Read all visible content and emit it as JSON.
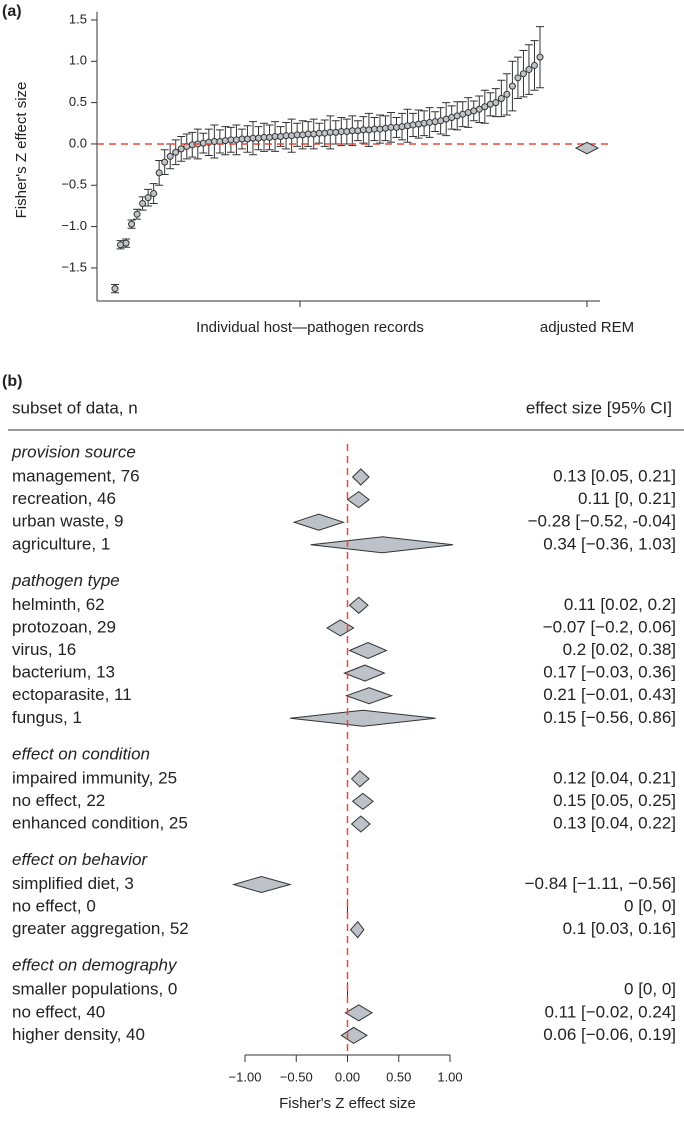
{
  "chart_data": [
    {
      "type": "scatter",
      "panel_label": "(a)",
      "ylabel": "Fisher's Z effect size",
      "xlabel": "Individual host—pathogen records",
      "rem_label": "adjusted REM",
      "ylim": [
        -1.9,
        1.6
      ],
      "yticks": [
        {
          "value": -1.5,
          "label": "−1.5"
        },
        {
          "value": -1,
          "label": "−1.0"
        },
        {
          "value": -0.5,
          "label": "−0.5"
        },
        {
          "value": 0,
          "label": "0.0"
        },
        {
          "value": 0.5,
          "label": "0.5"
        },
        {
          "value": 1,
          "label": "1.0"
        },
        {
          "value": 1.5,
          "label": "1.5"
        }
      ],
      "values": [
        -1.75,
        -1.22,
        -1.2,
        -0.97,
        -0.85,
        -0.72,
        -0.65,
        -0.6,
        -0.35,
        -0.22,
        -0.15,
        -0.1,
        -0.06,
        -0.03,
        -0.01,
        0.0,
        0.01,
        0.02,
        0.03,
        0.03,
        0.04,
        0.05,
        0.05,
        0.06,
        0.06,
        0.07,
        0.07,
        0.08,
        0.08,
        0.09,
        0.09,
        0.1,
        0.1,
        0.11,
        0.11,
        0.12,
        0.12,
        0.13,
        0.13,
        0.14,
        0.14,
        0.15,
        0.15,
        0.16,
        0.16,
        0.17,
        0.17,
        0.18,
        0.18,
        0.19,
        0.2,
        0.2,
        0.21,
        0.22,
        0.23,
        0.24,
        0.25,
        0.26,
        0.27,
        0.28,
        0.3,
        0.32,
        0.34,
        0.36,
        0.38,
        0.4,
        0.42,
        0.45,
        0.48,
        0.5,
        0.55,
        0.6,
        0.7,
        0.8,
        0.85,
        0.9,
        0.95,
        1.05
      ],
      "errors": [
        0.05,
        0.05,
        0.05,
        0.05,
        0.06,
        0.08,
        0.1,
        0.12,
        0.15,
        0.15,
        0.15,
        0.15,
        0.15,
        0.15,
        0.15,
        0.18,
        0.12,
        0.16,
        0.2,
        0.14,
        0.17,
        0.15,
        0.18,
        0.12,
        0.16,
        0.2,
        0.14,
        0.17,
        0.15,
        0.18,
        0.12,
        0.16,
        0.2,
        0.14,
        0.17,
        0.15,
        0.18,
        0.12,
        0.16,
        0.2,
        0.14,
        0.17,
        0.15,
        0.18,
        0.12,
        0.16,
        0.2,
        0.14,
        0.17,
        0.15,
        0.18,
        0.12,
        0.16,
        0.2,
        0.14,
        0.17,
        0.15,
        0.18,
        0.12,
        0.16,
        0.2,
        0.14,
        0.17,
        0.15,
        0.18,
        0.12,
        0.16,
        0.2,
        0.14,
        0.17,
        0.22,
        0.25,
        0.3,
        0.25,
        0.28,
        0.3,
        0.3,
        0.37
      ],
      "rem": {
        "value": -0.05,
        "lo": -0.12,
        "hi": 0.02
      },
      "color": "#bfc4c8",
      "reference_line_color": "#e8483a"
    },
    {
      "type": "forest",
      "panel_label": "(b)",
      "column_headers": [
        "subset of data, n",
        "effect size [95% CI]"
      ],
      "xlabel": "Fisher's Z effect size",
      "xlim": [
        -1,
        1
      ],
      "xticks": [
        {
          "value": -1,
          "label": "−1.00"
        },
        {
          "value": -0.5,
          "label": "−0.50"
        },
        {
          "value": 0,
          "label": "0.00"
        },
        {
          "value": 0.5,
          "label": "0.50"
        },
        {
          "value": 1,
          "label": "1.00"
        }
      ],
      "color": "#bcc2c7",
      "reference_line_color": "#e8483a",
      "groups": [
        {
          "name": "provision source",
          "rows": [
            {
              "label": "management, 76",
              "value": 0.13,
              "lo": 0.05,
              "hi": 0.21,
              "value_label": "0.13 [0.05, 0.21]"
            },
            {
              "label": "recreation, 46",
              "value": 0.11,
              "lo": 0,
              "hi": 0.21,
              "value_label": "0.11 [0, 0.21]"
            },
            {
              "label": "urban waste, 9",
              "value": -0.28,
              "lo": -0.52,
              "hi": -0.04,
              "value_label": "−0.28 [−0.52, -0.04]"
            },
            {
              "label": "agriculture, 1",
              "value": 0.34,
              "lo": -0.36,
              "hi": 1.03,
              "value_label": "0.34 [−0.36, 1.03]"
            }
          ]
        },
        {
          "name": "pathogen type",
          "rows": [
            {
              "label": "helminth, 62",
              "value": 0.11,
              "lo": 0.02,
              "hi": 0.2,
              "value_label": "0.11 [0.02, 0.2]"
            },
            {
              "label": "protozoan, 29",
              "value": -0.07,
              "lo": -0.2,
              "hi": 0.06,
              "value_label": "−0.07 [−0.2, 0.06]"
            },
            {
              "label": "virus, 16",
              "value": 0.2,
              "lo": 0.02,
              "hi": 0.38,
              "value_label": "0.2 [0.02, 0.38]"
            },
            {
              "label": "bacterium, 13",
              "value": 0.17,
              "lo": -0.03,
              "hi": 0.36,
              "value_label": "0.17 [−0.03, 0.36]"
            },
            {
              "label": "ectoparasite, 11",
              "value": 0.21,
              "lo": -0.01,
              "hi": 0.43,
              "value_label": "0.21 [−0.01, 0.43]"
            },
            {
              "label": "fungus, 1",
              "value": 0.15,
              "lo": -0.56,
              "hi": 0.86,
              "value_label": "0.15 [−0.56, 0.86]"
            }
          ]
        },
        {
          "name": "effect on condition",
          "rows": [
            {
              "label": "impaired immunity, 25",
              "value": 0.12,
              "lo": 0.04,
              "hi": 0.21,
              "value_label": "0.12 [0.04, 0.21]"
            },
            {
              "label": "no effect, 22",
              "value": 0.15,
              "lo": 0.05,
              "hi": 0.25,
              "value_label": "0.15 [0.05, 0.25]"
            },
            {
              "label": "enhanced condition, 25",
              "value": 0.13,
              "lo": 0.04,
              "hi": 0.22,
              "value_label": "0.13 [0.04, 0.22]"
            }
          ]
        },
        {
          "name": "effect on behavior",
          "rows": [
            {
              "label": "simplified diet, 3",
              "value": -0.84,
              "lo": -1.11,
              "hi": -0.56,
              "value_label": "−0.84 [−1.11, −0.56]"
            },
            {
              "label": "no effect, 0",
              "value": 0,
              "lo": 0,
              "hi": 0,
              "value_label": "0 [0, 0]"
            },
            {
              "label": "greater aggregation, 52",
              "value": 0.1,
              "lo": 0.03,
              "hi": 0.16,
              "value_label": "0.1 [0.03, 0.16]"
            }
          ]
        },
        {
          "name": "effect on demography",
          "rows": [
            {
              "label": "smaller populations, 0",
              "value": 0,
              "lo": 0,
              "hi": 0,
              "value_label": "0 [0, 0]"
            },
            {
              "label": "no effect, 40",
              "value": 0.11,
              "lo": -0.02,
              "hi": 0.24,
              "value_label": "0.11 [−0.02, 0.24]"
            },
            {
              "label": "higher density, 40",
              "value": 0.06,
              "lo": -0.06,
              "hi": 0.19,
              "value_label": "0.06 [−0.06, 0.19]"
            }
          ]
        }
      ]
    }
  ]
}
